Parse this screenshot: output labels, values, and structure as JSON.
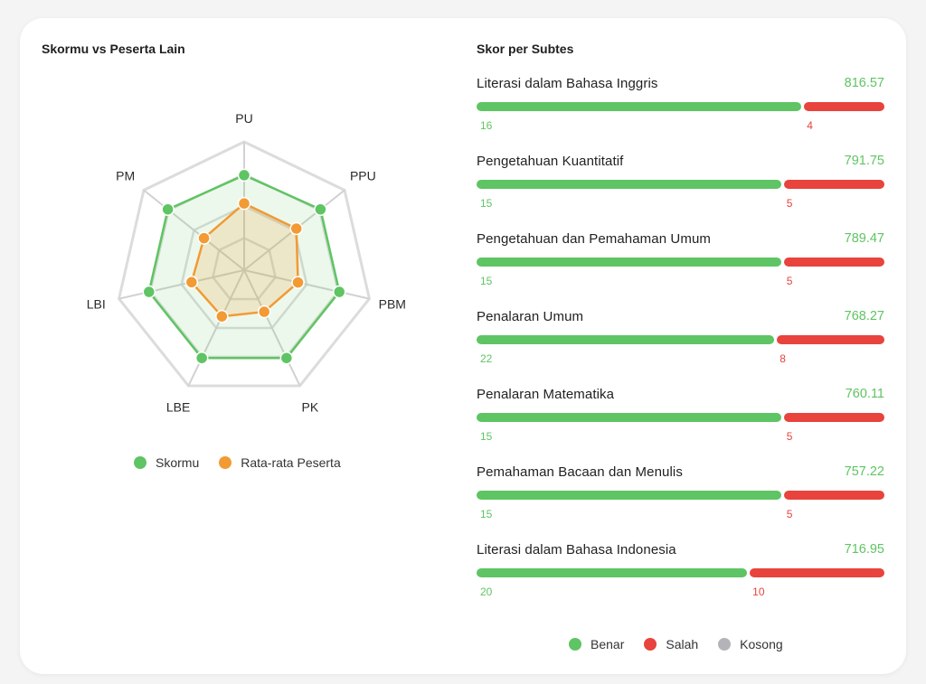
{
  "colors": {
    "skormu": "#5fc463",
    "rata": "#f29a33",
    "benar": "#5fc463",
    "salah": "#e8433d",
    "kosong": "#b4b4b8",
    "grid": "#dcdcdc"
  },
  "left_panel": {
    "title": "Skormu vs Peserta Lain"
  },
  "right_panel": {
    "title": "Skor per Subtes",
    "subtests": [
      {
        "name": "Literasi dalam Bahasa Inggris",
        "score": "816.57",
        "benar": 16,
        "salah": 4,
        "benar_label": "16",
        "salah_label": "4"
      },
      {
        "name": "Pengetahuan Kuantitatif",
        "score": "791.75",
        "benar": 15,
        "salah": 5,
        "benar_label": "15",
        "salah_label": "5"
      },
      {
        "name": "Pengetahuan dan Pemahaman Umum",
        "score": "789.47",
        "benar": 15,
        "salah": 5,
        "benar_label": "15",
        "salah_label": "5"
      },
      {
        "name": "Penalaran Umum",
        "score": "768.27",
        "benar": 22,
        "salah": 8,
        "benar_label": "22",
        "salah_label": "8"
      },
      {
        "name": "Penalaran Matematika",
        "score": "760.11",
        "benar": 15,
        "salah": 5,
        "benar_label": "15",
        "salah_label": "5"
      },
      {
        "name": "Pemahaman Bacaan dan Menulis",
        "score": "757.22",
        "benar": 15,
        "salah": 5,
        "benar_label": "15",
        "salah_label": "5"
      },
      {
        "name": "Literasi dalam Bahasa Indonesia",
        "score": "716.95",
        "benar": 20,
        "salah": 10,
        "benar_label": "20",
        "salah_label": "10"
      }
    ],
    "legend": {
      "benar": "Benar",
      "salah": "Salah",
      "kosong": "Kosong"
    }
  },
  "chart_data": [
    {
      "type": "radar",
      "title": "Skormu vs Peserta Lain",
      "categories": [
        "PU",
        "PPU",
        "PBM",
        "PK",
        "LBE",
        "LBI",
        "PM"
      ],
      "range": [
        0,
        1
      ],
      "grid_levels": 4,
      "series": [
        {
          "name": "Skormu",
          "values": [
            0.74,
            0.76,
            0.76,
            0.76,
            0.76,
            0.76,
            0.76
          ]
        },
        {
          "name": "Rata-rata Peserta",
          "values": [
            0.52,
            0.52,
            0.43,
            0.36,
            0.4,
            0.42,
            0.4
          ]
        }
      ],
      "legend": [
        "Skormu",
        "Rata-rata Peserta"
      ]
    },
    {
      "type": "bar",
      "orientation": "horizontal-stacked",
      "title": "Skor per Subtes",
      "categories": [
        "Literasi dalam Bahasa Inggris",
        "Pengetahuan Kuantitatif",
        "Pengetahuan dan Pemahaman Umum",
        "Penalaran Umum",
        "Penalaran Matematika",
        "Pemahaman Bacaan dan Menulis",
        "Literasi dalam Bahasa Indonesia"
      ],
      "series": [
        {
          "name": "Benar",
          "values": [
            16,
            15,
            15,
            22,
            15,
            15,
            20
          ]
        },
        {
          "name": "Salah",
          "values": [
            4,
            5,
            5,
            8,
            5,
            5,
            10
          ]
        },
        {
          "name": "Kosong",
          "values": [
            0,
            0,
            0,
            0,
            0,
            0,
            0
          ]
        }
      ],
      "scores": [
        816.57,
        791.75,
        789.47,
        768.27,
        760.11,
        757.22,
        716.95
      ]
    }
  ]
}
